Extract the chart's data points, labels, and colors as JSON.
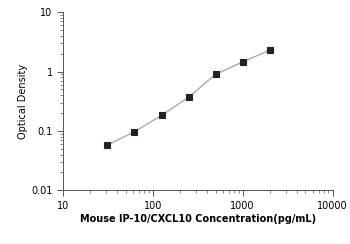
{
  "x_values": [
    31.25,
    62.5,
    125,
    250,
    500,
    1000,
    2000
  ],
  "y_values": [
    0.058,
    0.097,
    0.183,
    0.37,
    0.9,
    1.45,
    2.3
  ],
  "x_label": "Mouse IP-10/CXCL10 Concentration(pg/mL)",
  "y_label": "Optical Density",
  "x_lim": [
    10,
    10000
  ],
  "y_lim": [
    0.01,
    10
  ],
  "line_color": "#aaaaaa",
  "marker_color": "#222222",
  "marker_style": "s",
  "marker_size": 4,
  "line_width": 1.0,
  "background_color": "#ffffff",
  "x_ticks": [
    10,
    100,
    1000,
    10000
  ],
  "x_tick_labels": [
    "10",
    "100",
    "1000",
    "10000"
  ],
  "y_ticks": [
    0.01,
    0.1,
    1,
    10
  ],
  "y_tick_labels": [
    "0.01",
    "0.1",
    "1",
    "10"
  ],
  "xlabel_fontsize": 7,
  "ylabel_fontsize": 7,
  "tick_fontsize": 7
}
